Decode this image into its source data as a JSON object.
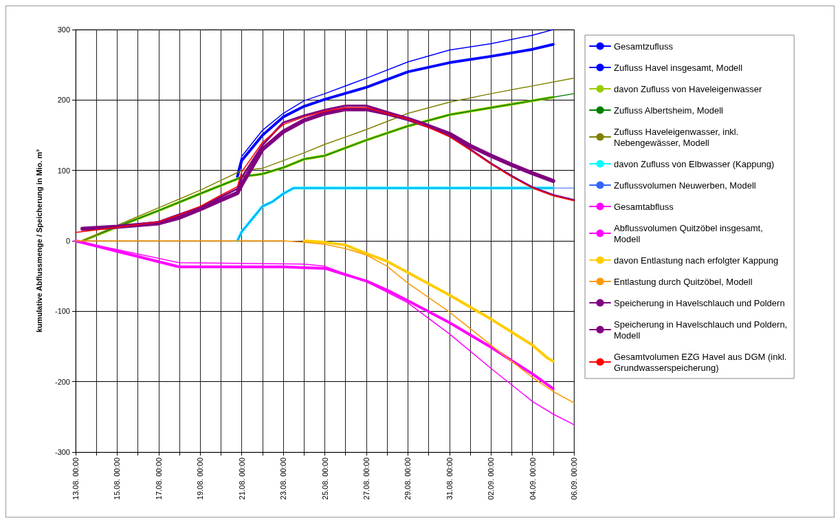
{
  "chart_data": {
    "type": "line",
    "ylabel": "kumulative Abflussmenge / Speicherung in Mio. m³",
    "legend": "right",
    "grid": true,
    "marker": "none",
    "line_style": "solid",
    "xlim": [
      "--08-13",
      "--09-06"
    ],
    "ylim": [
      -300,
      300
    ],
    "yticks": [
      -300,
      -200,
      -100,
      0,
      100,
      200,
      300
    ],
    "xticks": [
      {
        "value": "--08-13",
        "label": "13.08. 00:00"
      },
      {
        "value": "--08-14",
        "label": null
      },
      {
        "value": "--08-15",
        "label": "15.08. 00:00"
      },
      {
        "value": "--08-16",
        "label": null
      },
      {
        "value": "--08-17",
        "label": "17.08. 00:00"
      },
      {
        "value": "--08-18",
        "label": null
      },
      {
        "value": "--08-19",
        "label": "19.08. 00:00"
      },
      {
        "value": "--08-20",
        "label": null
      },
      {
        "value": "--08-21",
        "label": "21.08. 00:00"
      },
      {
        "value": "--08-22",
        "label": null
      },
      {
        "value": "--08-23",
        "label": "23.08. 00:00"
      },
      {
        "value": "--08-24",
        "label": null
      },
      {
        "value": "--08-25",
        "label": "25.08. 00:00"
      },
      {
        "value": "--08-26",
        "label": null
      },
      {
        "value": "--08-27",
        "label": "27.08. 00:00"
      },
      {
        "value": "--08-28",
        "label": null
      },
      {
        "value": "--08-29",
        "label": "29.08. 00:00"
      },
      {
        "value": "--08-30",
        "label": null
      },
      {
        "value": "--08-31",
        "label": "31.08. 00:00"
      },
      {
        "value": "--09-01",
        "label": null
      },
      {
        "value": "--09-02",
        "label": "02.09. 00:00"
      },
      {
        "value": "--09-03",
        "label": null
      },
      {
        "value": "--09-04",
        "label": "04.09. 00:00"
      },
      {
        "value": "--09-05",
        "label": null
      },
      {
        "value": "--09-06",
        "label": "06.09. 00:00"
      }
    ],
    "series": [
      {
        "name": "Gesamtzufluss",
        "color": "#0000ff",
        "x": [
          "--08-20T19:00",
          "--08-21",
          "--08-22",
          "--08-23",
          "--08-24",
          "--08-25",
          "--08-27",
          "--08-29",
          "--08-31",
          "--09-02",
          "--09-04",
          "--09-05"
        ],
        "values": [
          91,
          114,
          150,
          176,
          191,
          201,
          218,
          240,
          253,
          262,
          272,
          279
        ]
      },
      {
        "name": "Zufluss Havel insgesamt, Modell",
        "color": "#0000ff",
        "x": [
          "--08-20T19:00",
          "--08-21",
          "--08-22",
          "--08-23",
          "--08-24",
          "--08-25",
          "--08-27",
          "--08-29",
          "--08-31",
          "--09-02",
          "--09-04",
          "--09-05"
        ],
        "values": [
          97,
          120,
          157,
          181,
          199,
          209,
          231,
          254,
          271,
          280,
          292,
          300
        ]
      },
      {
        "name": "davon Zufluss von Haveleigenwasser",
        "color": "#99cc00",
        "x": [
          "--08-13T08:00",
          "--08-15",
          "--08-17",
          "--08-19",
          "--08-20T19:00",
          "--08-21",
          "--08-22",
          "--08-23",
          "--08-24",
          "--08-25",
          "--08-27",
          "--08-29",
          "--08-31",
          "--09-02",
          "--09-04",
          "--09-05"
        ],
        "values": [
          0,
          20,
          43,
          67,
          88,
          91,
          95,
          104,
          116,
          121,
          143,
          163,
          179,
          189,
          199,
          204
        ]
      },
      {
        "name": "Zufluss Albertsheim, Modell",
        "color": "#008000",
        "x": [
          "--08-13T08:00",
          "--08-15",
          "--08-17",
          "--08-19",
          "--08-20T19:00",
          "--08-21",
          "--08-22",
          "--08-23",
          "--08-24",
          "--08-25",
          "--08-27",
          "--08-29",
          "--08-31",
          "--09-02",
          "--09-04",
          "--09-06"
        ],
        "values": [
          0,
          20,
          43,
          67,
          88,
          91,
          95,
          104,
          116,
          121,
          143,
          163,
          179,
          189,
          199,
          209
        ]
      },
      {
        "name": "Zufluss Haveleigenwasser, inkl.\nNebengewässer, Modell",
        "color": "#808000",
        "x": [
          "--08-13T08:00",
          "--08-15",
          "--08-17",
          "--08-19",
          "--08-20T19:00",
          "--08-21",
          "--08-22",
          "--08-23",
          "--08-24",
          "--08-25",
          "--08-27",
          "--08-29",
          "--08-31",
          "--09-02",
          "--09-04",
          "--09-06"
        ],
        "values": [
          0,
          22,
          47,
          72,
          97,
          100,
          103,
          114,
          125,
          137,
          158,
          181,
          197,
          209,
          220,
          231
        ]
      },
      {
        "name": "davon Zufluss von Elbwasser (Kappung)",
        "color": "#00ffff",
        "x": [
          "--08-20T19:00",
          "--08-21",
          "--08-22",
          "--08-22T12:00",
          "--08-23",
          "--08-23T12:00",
          "--09-05"
        ],
        "values": [
          0,
          13,
          49,
          56,
          67,
          75,
          75
        ]
      },
      {
        "name": "Zuflussvolumen Neuwerben, Modell",
        "color": "#3366ff",
        "x": [
          "--08-20T19:00",
          "--08-21",
          "--08-22",
          "--08-22T12:00",
          "--08-23",
          "--08-23T12:00",
          "--09-06"
        ],
        "values": [
          0,
          13,
          49,
          56,
          67,
          75,
          75
        ]
      },
      {
        "name": "Gesamtabfluss",
        "color": "#ff00ff",
        "x": [
          "--08-13",
          "--08-18",
          "--08-23",
          "--08-24",
          "--08-25",
          "--08-27",
          "--08-28",
          "--08-29",
          "--08-31",
          "--09-02",
          "--09-04",
          "--09-05"
        ],
        "values": [
          0,
          -37,
          -37,
          -38,
          -39,
          -57,
          -70,
          -85,
          -116,
          -151,
          -189,
          -210
        ]
      },
      {
        "name": "Abflussvolumen Quitzöbel insgesamt,\nModell",
        "color": "#ff00ff",
        "x": [
          "--08-13",
          "--08-18",
          "--08-24",
          "--08-25",
          "--08-27",
          "--08-28",
          "--08-29",
          "--08-31",
          "--09-02",
          "--09-04",
          "--09-05",
          "--09-06"
        ],
        "values": [
          0,
          -31,
          -33,
          -36,
          -58,
          -73,
          -88,
          -132,
          -181,
          -228,
          -246,
          -261
        ]
      },
      {
        "name": "davon Entlastung nach erfolgter Kappung",
        "color": "#ffcc00",
        "x": [
          "--08-24",
          "--08-25",
          "--08-26",
          "--08-27",
          "--08-28",
          "--08-29",
          "--08-31",
          "--09-02",
          "--09-04",
          "--09-04T17:00",
          "--09-05"
        ],
        "values": [
          0,
          -2,
          -6,
          -18,
          -29,
          -45,
          -77,
          -111,
          -148,
          -166,
          -171
        ]
      },
      {
        "name": "Entlastung durch Quitzöbel, Modell",
        "color": "#ff9900",
        "x": [
          "--08-13",
          "--08-23",
          "--08-24",
          "--08-25",
          "--08-26",
          "--08-27",
          "--08-28",
          "--08-29",
          "--08-31",
          "--09-02",
          "--09-04",
          "--09-05",
          "--09-06"
        ],
        "values": [
          0,
          0,
          -2,
          -5,
          -11,
          -20,
          -36,
          -60,
          -101,
          -148,
          -194,
          -214,
          -230
        ]
      },
      {
        "name": "Speicherung in Havelschlauch und Poldern",
        "color": "#800080",
        "x": [
          "--08-13T08:00",
          "--08-15",
          "--08-17",
          "--08-18",
          "--08-19",
          "--08-20",
          "--08-20T19:00",
          "--08-21",
          "--08-22",
          "--08-23",
          "--08-24",
          "--08-25",
          "--08-26",
          "--08-27",
          "--08-28",
          "--08-29",
          "--08-30",
          "--08-31",
          "--09-01",
          "--09-02",
          "--09-03",
          "--09-04",
          "--09-05"
        ],
        "values": [
          17,
          20,
          25,
          33,
          45,
          58,
          68,
          80,
          130,
          155,
          171,
          181,
          187,
          187,
          181,
          173,
          163,
          152,
          135,
          121,
          108,
          96,
          85
        ]
      },
      {
        "name": "Speicherung in Havelschlauch und Poldern,\nModell",
        "color": "#800080",
        "x": [
          "--08-13T08:00",
          "--08-15",
          "--08-17",
          "--08-19",
          "--08-20T19:00",
          "--08-21",
          "--08-22",
          "--08-23",
          "--08-24",
          "--08-25",
          "--08-26",
          "--08-27",
          "--08-28",
          "--08-29",
          "--08-30",
          "--08-31",
          "--09-01",
          "--09-02",
          "--09-03",
          "--09-04",
          "--09-05",
          "--09-06"
        ],
        "values": [
          16,
          20,
          27,
          48,
          74,
          90,
          136,
          168,
          178,
          186,
          192,
          192,
          183,
          174,
          162,
          149,
          130,
          110,
          92,
          76,
          65,
          58
        ]
      },
      {
        "name": "Gesamtvolumen EZG Havel aus DGM (inkl.\nGrundwasserspeicherung)",
        "color": "#ff0000",
        "x": [
          "--08-13",
          "--08-15",
          "--08-17",
          "--08-18",
          "--08-19",
          "--08-20",
          "--08-20T19:00",
          "--08-21",
          "--08-22",
          "--08-23",
          "--08-24",
          "--08-25",
          "--08-26",
          "--08-27",
          "--08-28",
          "--08-29",
          "--08-30",
          "--08-31",
          "--09-01",
          "--09-02",
          "--09-03",
          "--09-04",
          "--09-05",
          "--09-06"
        ],
        "values": [
          12,
          19,
          27,
          37,
          49,
          65,
          77,
          98,
          140,
          165,
          176,
          184,
          189,
          189,
          181,
          173,
          161,
          148,
          129,
          109,
          91,
          75,
          64,
          57
        ]
      }
    ]
  }
}
